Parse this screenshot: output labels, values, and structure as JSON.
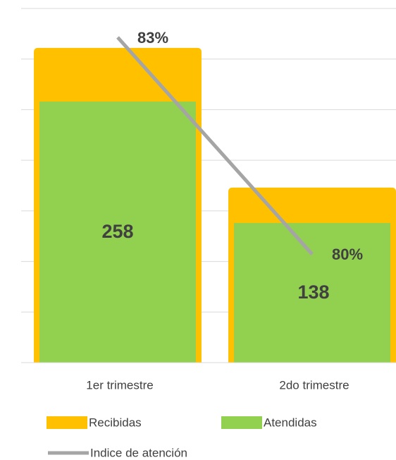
{
  "chart_data": {
    "type": "bar",
    "categories": [
      "1er trimestre",
      "2do trimestre"
    ],
    "series": [
      {
        "name": "Recibidas",
        "color": "#FFC000",
        "values": [
          311,
          173
        ]
      },
      {
        "name": "Atendidas",
        "color": "#92D050",
        "values": [
          258,
          138
        ]
      },
      {
        "name": "Indice de atención",
        "type": "line",
        "axis": "y2",
        "color": "#A5A5A5",
        "values": [
          83,
          80
        ],
        "value_labels": [
          "83%",
          "80%"
        ]
      }
    ],
    "ylim": [
      0,
      350
    ],
    "yticks": [
      0,
      50,
      100,
      150,
      200,
      250,
      300,
      350
    ],
    "y2lim": [
      78.5,
      83.4
    ],
    "grid": true,
    "legend": "bottom"
  }
}
